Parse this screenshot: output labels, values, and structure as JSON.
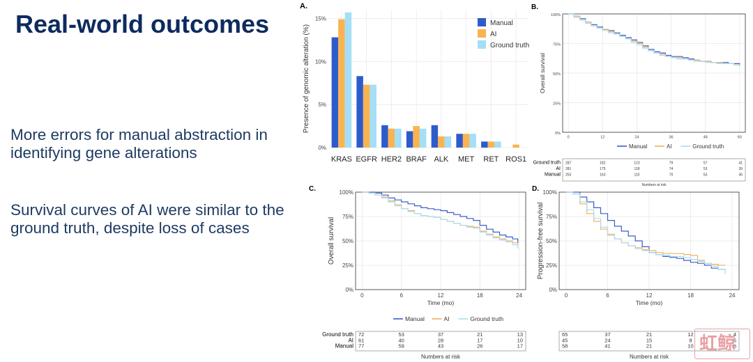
{
  "slide": {
    "title": "Real-world outcomes",
    "bullets": [
      "More errors for manual abstraction in identifying gene alterations",
      "Survival curves of AI were similar to the ground truth, despite loss of cases"
    ]
  },
  "watermark": {
    "text": "虹鲸"
  },
  "chart_data": [
    {
      "id": "A",
      "panel_label": "A.",
      "type": "bar",
      "title": "",
      "xlabel": "",
      "ylabel": "Presence of genomic alteration (%)",
      "ylim": [
        0,
        16
      ],
      "yticks": [
        0,
        5,
        10,
        15
      ],
      "ytick_labels": [
        "0%",
        "5%",
        "10%",
        "15%"
      ],
      "grid": true,
      "legend_position": "top-right",
      "categories": [
        "KRAS",
        "EGFR",
        "HER2",
        "BRAF",
        "ALK",
        "MET",
        "RET",
        "ROS1"
      ],
      "series": [
        {
          "name": "Manual",
          "color": "#2e5bcc",
          "values": [
            12.8,
            8.3,
            2.6,
            1.9,
            2.6,
            1.6,
            0.7,
            0.0
          ]
        },
        {
          "name": "AI",
          "color": "#f9b451",
          "values": [
            14.9,
            7.3,
            2.2,
            2.5,
            1.3,
            1.6,
            0.7,
            0.35
          ]
        },
        {
          "name": "Ground truth",
          "color": "#a4def7",
          "values": [
            15.7,
            7.3,
            2.2,
            2.2,
            1.3,
            1.6,
            0.7,
            0.0
          ]
        }
      ]
    },
    {
      "id": "B",
      "panel_label": "B.",
      "type": "line",
      "title": "",
      "xlabel": "",
      "ylabel": "Overall survival",
      "xlim": [
        -2,
        62
      ],
      "ylim": [
        0,
        1
      ],
      "xticks": [
        0,
        12,
        24,
        36,
        48,
        60
      ],
      "xtick_labels": [
        "0",
        "12",
        "24",
        "36",
        "48",
        "60"
      ],
      "yticks": [
        0,
        0.25,
        0.5,
        0.75,
        1
      ],
      "ytick_labels": [
        "0%",
        "25%",
        "50%",
        "75%",
        "100%"
      ],
      "grid": true,
      "legend_position": "bottom",
      "series": [
        {
          "name": "Manual",
          "color": "#3b5ec4",
          "x": [
            0,
            2,
            4,
            6,
            8,
            10,
            12,
            14,
            16,
            18,
            20,
            22,
            24,
            26,
            28,
            30,
            32,
            34,
            36,
            38,
            40,
            42,
            44,
            46,
            48,
            50,
            52,
            54,
            56,
            58,
            60
          ],
          "y": [
            1.0,
            0.98,
            0.96,
            0.93,
            0.91,
            0.89,
            0.87,
            0.86,
            0.84,
            0.82,
            0.8,
            0.78,
            0.76,
            0.73,
            0.7,
            0.68,
            0.67,
            0.65,
            0.64,
            0.64,
            0.63,
            0.62,
            0.61,
            0.6,
            0.6,
            0.59,
            0.59,
            0.59,
            0.58,
            0.58,
            0.56
          ]
        },
        {
          "name": "AI",
          "color": "#f2b05a",
          "x": [
            0,
            2,
            4,
            6,
            8,
            10,
            12,
            14,
            16,
            18,
            20,
            22,
            24,
            26,
            28,
            30,
            32,
            34,
            36,
            38,
            40,
            42,
            44,
            46,
            48,
            50,
            52,
            54,
            56,
            58,
            60
          ],
          "y": [
            1.0,
            0.98,
            0.95,
            0.93,
            0.9,
            0.88,
            0.87,
            0.85,
            0.83,
            0.81,
            0.79,
            0.77,
            0.75,
            0.72,
            0.69,
            0.67,
            0.66,
            0.64,
            0.63,
            0.63,
            0.62,
            0.61,
            0.61,
            0.6,
            0.6,
            0.59,
            0.59,
            0.58,
            0.58,
            0.57,
            0.56
          ]
        },
        {
          "name": "Ground truth",
          "color": "#a9dcf2",
          "x": [
            0,
            2,
            4,
            6,
            8,
            10,
            12,
            14,
            16,
            18,
            20,
            22,
            24,
            26,
            28,
            30,
            32,
            34,
            36,
            38,
            40,
            42,
            44,
            46,
            48,
            50,
            52,
            54,
            56,
            58,
            60
          ],
          "y": [
            1.0,
            0.97,
            0.95,
            0.92,
            0.9,
            0.88,
            0.86,
            0.84,
            0.83,
            0.81,
            0.79,
            0.76,
            0.74,
            0.71,
            0.69,
            0.67,
            0.65,
            0.64,
            0.63,
            0.62,
            0.62,
            0.61,
            0.6,
            0.6,
            0.59,
            0.59,
            0.58,
            0.58,
            0.58,
            0.57,
            0.56
          ]
        }
      ],
      "risk_table": {
        "title": "Numbers at risk",
        "rows": [
          {
            "label": "Ground truth",
            "values": [
              "287",
              "182",
              "123",
              "79",
              "57",
              "41"
            ]
          },
          {
            "label": "AI",
            "values": [
              "281",
              "175",
              "118",
              "74",
              "53",
              "39"
            ]
          },
          {
            "label": "Manual",
            "values": [
              "253",
              "163",
              "110",
              "70",
              "53",
              "36"
            ]
          }
        ]
      }
    },
    {
      "id": "C",
      "panel_label": "C.",
      "type": "line",
      "title": "",
      "xlabel": "Time (mo)",
      "ylabel": "Overall survival",
      "xlim": [
        -1,
        25
      ],
      "ylim": [
        0,
        1
      ],
      "xticks": [
        0,
        6,
        12,
        18,
        24
      ],
      "xtick_labels": [
        "0",
        "6",
        "12",
        "18",
        "24"
      ],
      "yticks": [
        0,
        0.25,
        0.5,
        0.75,
        1
      ],
      "ytick_labels": [
        "0%",
        "25%",
        "50%",
        "75%",
        "100%"
      ],
      "grid": true,
      "legend_position": "bottom",
      "series": [
        {
          "name": "Manual",
          "color": "#3b5ec4",
          "x": [
            0,
            1,
            2,
            3,
            4,
            5,
            6,
            7,
            8,
            9,
            10,
            11,
            12,
            13,
            14,
            15,
            16,
            17,
            18,
            19,
            20,
            21,
            22,
            23,
            23.8
          ],
          "y": [
            1.0,
            1.0,
            0.99,
            0.97,
            0.94,
            0.92,
            0.9,
            0.88,
            0.86,
            0.84,
            0.83,
            0.82,
            0.81,
            0.79,
            0.77,
            0.75,
            0.73,
            0.71,
            0.66,
            0.62,
            0.59,
            0.56,
            0.54,
            0.52,
            0.48
          ]
        },
        {
          "name": "AI",
          "color": "#f2b05a",
          "x": [
            0,
            1,
            2,
            3,
            4,
            5,
            6,
            7,
            8,
            9,
            10,
            11,
            12,
            13,
            14,
            15,
            16,
            17,
            18,
            19,
            20,
            21,
            22,
            23,
            23.8
          ],
          "y": [
            1.0,
            0.99,
            0.97,
            0.95,
            0.91,
            0.87,
            0.83,
            0.81,
            0.78,
            0.76,
            0.75,
            0.74,
            0.72,
            0.7,
            0.68,
            0.66,
            0.65,
            0.64,
            0.6,
            0.57,
            0.54,
            0.52,
            0.5,
            0.48,
            0.46
          ]
        },
        {
          "name": "Ground truth",
          "color": "#a9dcf2",
          "x": [
            0,
            1,
            2,
            3,
            4,
            5,
            6,
            7,
            8,
            9,
            10,
            11,
            12,
            13,
            14,
            15,
            16,
            17,
            18,
            19,
            20,
            21,
            22,
            23,
            23.8
          ],
          "y": [
            1.0,
            0.99,
            0.97,
            0.94,
            0.9,
            0.86,
            0.83,
            0.8,
            0.78,
            0.76,
            0.75,
            0.74,
            0.72,
            0.7,
            0.68,
            0.66,
            0.64,
            0.63,
            0.59,
            0.56,
            0.53,
            0.51,
            0.49,
            0.46,
            0.42
          ]
        }
      ],
      "risk_table": {
        "title": "Numbers at risk",
        "rows": [
          {
            "label": "Ground truth",
            "values": [
              "72",
              "53",
              "37",
              "21",
              "13"
            ]
          },
          {
            "label": "AI",
            "values": [
              "61",
              "40",
              "28",
              "17",
              "10"
            ]
          },
          {
            "label": "Manual",
            "values": [
              "77",
              "59",
              "43",
              "26",
              "17"
            ]
          }
        ]
      }
    },
    {
      "id": "D",
      "panel_label": "D.",
      "type": "line",
      "title": "",
      "xlabel": "Time (mo)",
      "ylabel": "Progression-free survival",
      "xlim": [
        -1,
        25
      ],
      "ylim": [
        0,
        1
      ],
      "xticks": [
        0,
        6,
        12,
        18,
        24
      ],
      "xtick_labels": [
        "0",
        "6",
        "12",
        "18",
        "24"
      ],
      "yticks": [
        0,
        0.25,
        0.5,
        0.75,
        1
      ],
      "ytick_labels": [
        "0%",
        "25%",
        "50%",
        "75%",
        "100%"
      ],
      "grid": true,
      "legend_position": "none",
      "series": [
        {
          "name": "Manual",
          "color": "#3b5ec4",
          "x": [
            0,
            1,
            2,
            3,
            4,
            5,
            6,
            7,
            8,
            9,
            10,
            11,
            12,
            13,
            14,
            15,
            16,
            17,
            18,
            19,
            20,
            21,
            22,
            23
          ],
          "y": [
            1.0,
            1.0,
            0.95,
            0.9,
            0.84,
            0.78,
            0.71,
            0.65,
            0.6,
            0.55,
            0.5,
            0.44,
            0.38,
            0.36,
            0.34,
            0.33,
            0.32,
            0.3,
            0.28,
            0.27,
            0.25,
            0.22,
            0.21,
            0.21
          ]
        },
        {
          "name": "AI",
          "color": "#f2b05a",
          "x": [
            0,
            1,
            2,
            3,
            4,
            5,
            6,
            7,
            8,
            9,
            10,
            11,
            12,
            13,
            14,
            15,
            16,
            17,
            18,
            19,
            20,
            21,
            22,
            23
          ],
          "y": [
            1.0,
            0.98,
            0.88,
            0.78,
            0.7,
            0.62,
            0.56,
            0.52,
            0.48,
            0.45,
            0.43,
            0.41,
            0.4,
            0.38,
            0.37,
            0.37,
            0.37,
            0.36,
            0.35,
            0.3,
            0.27,
            0.26,
            0.25,
            0.25
          ]
        },
        {
          "name": "Ground truth",
          "color": "#a9dcf2",
          "x": [
            0,
            1,
            2,
            3,
            4,
            5,
            6,
            7,
            8,
            9,
            10,
            11,
            12,
            13,
            14,
            15,
            16,
            17,
            18,
            19,
            20,
            21,
            22,
            23
          ],
          "y": [
            1.0,
            0.98,
            0.9,
            0.82,
            0.73,
            0.64,
            0.57,
            0.52,
            0.48,
            0.45,
            0.42,
            0.4,
            0.38,
            0.36,
            0.35,
            0.34,
            0.34,
            0.33,
            0.31,
            0.29,
            0.27,
            0.24,
            0.21,
            0.16
          ]
        }
      ],
      "risk_table": {
        "title": "Numbers at risk",
        "rows": [
          {
            "label": "",
            "values": [
              "65",
              "37",
              "21",
              "12",
              "4"
            ]
          },
          {
            "label": "",
            "values": [
              "45",
              "24",
              "15",
              "8",
              "5"
            ]
          },
          {
            "label": "",
            "values": [
              "58",
              "41",
              "21",
              "10",
              "6"
            ]
          }
        ]
      }
    }
  ]
}
